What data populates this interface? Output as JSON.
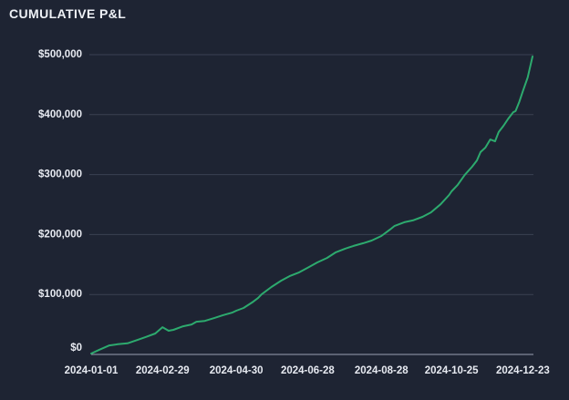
{
  "header": {
    "title": "CUMULATIVE P&L"
  },
  "colors": {
    "background": "#1e2433",
    "line": "#2daa6e",
    "gridline": "#3a4153",
    "axis_line": "#99a1b3",
    "tick_text": "#e7eaf1",
    "title_text": "#eef1f6"
  },
  "chart_data": {
    "type": "line",
    "title": "CUMULATIVE P&L",
    "xlabel": "",
    "ylabel": "",
    "legend": "none",
    "grid": "horizontal",
    "x_domain": [
      "2024-01-01",
      "2024-12-31"
    ],
    "ylim": [
      0,
      500000
    ],
    "y_ticks": [
      0,
      100000,
      200000,
      300000,
      400000,
      500000
    ],
    "y_tick_labels": [
      "$0",
      "$100,000",
      "$200,000",
      "$300,000",
      "$400,000",
      "$500,000"
    ],
    "x_ticks": [
      "2024-01-01",
      "2024-02-29",
      "2024-04-30",
      "2024-06-28",
      "2024-08-28",
      "2024-10-25",
      "2024-12-23"
    ],
    "series": [
      {
        "name": "Cumulative P&L",
        "points": [
          [
            "2024-01-01",
            1500
          ],
          [
            "2024-01-08",
            8000
          ],
          [
            "2024-01-16",
            15000
          ],
          [
            "2024-01-23",
            17000
          ],
          [
            "2024-01-31",
            18500
          ],
          [
            "2024-02-08",
            24000
          ],
          [
            "2024-02-15",
            29000
          ],
          [
            "2024-02-23",
            35000
          ],
          [
            "2024-02-29",
            45500
          ],
          [
            "2024-03-05",
            39500
          ],
          [
            "2024-03-09",
            41000
          ],
          [
            "2024-03-17",
            47000
          ],
          [
            "2024-03-24",
            50000
          ],
          [
            "2024-03-28",
            54500
          ],
          [
            "2024-04-04",
            56000
          ],
          [
            "2024-04-12",
            61000
          ],
          [
            "2024-04-19",
            65500
          ],
          [
            "2024-04-27",
            70000
          ],
          [
            "2024-04-30",
            73000
          ],
          [
            "2024-05-06",
            77500
          ],
          [
            "2024-05-14",
            88000
          ],
          [
            "2024-05-18",
            94000
          ],
          [
            "2024-05-21",
            100500
          ],
          [
            "2024-05-29",
            112500
          ],
          [
            "2024-06-06",
            123000
          ],
          [
            "2024-06-13",
            130500
          ],
          [
            "2024-06-21",
            137000
          ],
          [
            "2024-06-28",
            144500
          ],
          [
            "2024-07-06",
            153500
          ],
          [
            "2024-07-14",
            161000
          ],
          [
            "2024-07-21",
            170000
          ],
          [
            "2024-07-29",
            176500
          ],
          [
            "2024-08-05",
            181000
          ],
          [
            "2024-08-13",
            185500
          ],
          [
            "2024-08-20",
            190000
          ],
          [
            "2024-08-28",
            197500
          ],
          [
            "2024-09-04",
            208000
          ],
          [
            "2024-09-08",
            214500
          ],
          [
            "2024-09-16",
            220500
          ],
          [
            "2024-09-23",
            223500
          ],
          [
            "2024-10-01",
            229500
          ],
          [
            "2024-10-08",
            237000
          ],
          [
            "2024-10-16",
            250500
          ],
          [
            "2024-10-23",
            266000
          ],
          [
            "2024-10-25",
            272000
          ],
          [
            "2024-10-30",
            282500
          ],
          [
            "2024-11-05",
            299500
          ],
          [
            "2024-11-11",
            313000
          ],
          [
            "2024-11-15",
            323500
          ],
          [
            "2024-11-18",
            337500
          ],
          [
            "2024-11-22",
            345000
          ],
          [
            "2024-11-26",
            358500
          ],
          [
            "2024-11-30",
            355500
          ],
          [
            "2024-12-03",
            371000
          ],
          [
            "2024-12-07",
            381500
          ],
          [
            "2024-12-11",
            393500
          ],
          [
            "2024-12-15",
            404000
          ],
          [
            "2024-12-17",
            406000
          ],
          [
            "2024-12-20",
            421000
          ],
          [
            "2024-12-23",
            439000
          ],
          [
            "2024-12-27",
            462000
          ],
          [
            "2024-12-31",
            497000
          ]
        ]
      }
    ]
  }
}
